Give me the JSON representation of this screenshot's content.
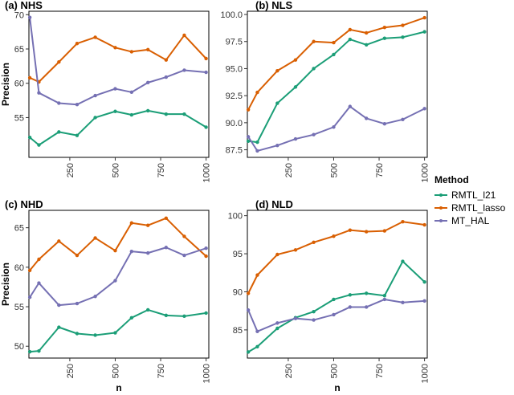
{
  "chart_data": [
    {
      "type": "line",
      "title": "(a) NHS",
      "xlabel": "",
      "ylabel": "Precision",
      "xlim": [
        25,
        1015
      ],
      "ylim": [
        49.2,
        70.5
      ],
      "xticks": [
        250,
        500,
        750,
        1000
      ],
      "yticks": [
        55,
        60,
        65,
        70
      ],
      "x": [
        30,
        80,
        190,
        290,
        390,
        500,
        590,
        680,
        780,
        880,
        1000
      ],
      "series": [
        {
          "name": "RMTL_l21",
          "values": [
            52.1,
            51.0,
            52.9,
            52.4,
            55.0,
            55.9,
            55.4,
            56.0,
            55.5,
            55.5,
            53.6
          ]
        },
        {
          "name": "RMTL_lasso",
          "values": [
            60.8,
            60.2,
            63.1,
            65.8,
            66.7,
            65.2,
            64.6,
            64.9,
            63.4,
            67.0,
            63.6
          ]
        },
        {
          "name": "MT_HAL",
          "values": [
            69.6,
            58.6,
            57.1,
            56.9,
            58.2,
            59.2,
            58.7,
            60.1,
            60.9,
            61.9,
            61.6
          ]
        }
      ]
    },
    {
      "type": "line",
      "title": "(b) NLS",
      "xlabel": "",
      "ylabel": "",
      "xlim": [
        25,
        1015
      ],
      "ylim": [
        86.8,
        100.3
      ],
      "xticks": [
        250,
        500,
        750,
        1000
      ],
      "yticks": [
        "87.5",
        "90.0",
        "92.5",
        "95.0",
        "97.5",
        "100.0"
      ],
      "x": [
        30,
        80,
        190,
        290,
        390,
        500,
        590,
        680,
        780,
        880,
        1000
      ],
      "series": [
        {
          "name": "RMTL_l21",
          "values": [
            88.3,
            88.2,
            91.8,
            93.3,
            95.0,
            96.3,
            97.7,
            97.2,
            97.8,
            97.9,
            98.4
          ]
        },
        {
          "name": "RMTL_lasso",
          "values": [
            91.2,
            92.8,
            94.8,
            95.8,
            97.5,
            97.4,
            98.6,
            98.3,
            98.8,
            99.0,
            99.7
          ]
        },
        {
          "name": "MT_HAL",
          "values": [
            88.7,
            87.4,
            87.9,
            88.5,
            88.9,
            89.6,
            91.5,
            90.4,
            89.9,
            90.3,
            91.3
          ]
        }
      ]
    },
    {
      "type": "line",
      "title": "(c) NHD",
      "xlabel": "n",
      "ylabel": "Precision",
      "xlim": [
        25,
        1015
      ],
      "ylim": [
        48.5,
        67.2
      ],
      "xticks": [
        250,
        500,
        750,
        1000
      ],
      "yticks": [
        50,
        55,
        60,
        65
      ],
      "x": [
        30,
        80,
        190,
        290,
        390,
        500,
        590,
        680,
        780,
        880,
        1000
      ],
      "series": [
        {
          "name": "RMTL_l21",
          "values": [
            49.3,
            49.4,
            52.4,
            51.6,
            51.4,
            51.7,
            53.6,
            54.6,
            53.9,
            53.8,
            54.2
          ]
        },
        {
          "name": "RMTL_lasso",
          "values": [
            59.6,
            61.0,
            63.3,
            61.5,
            63.7,
            62.1,
            65.6,
            65.3,
            66.2,
            63.9,
            61.4
          ]
        },
        {
          "name": "MT_HAL",
          "values": [
            56.2,
            58.0,
            55.2,
            55.4,
            56.3,
            58.3,
            62.0,
            61.8,
            62.5,
            61.5,
            62.4
          ]
        }
      ]
    },
    {
      "type": "line",
      "title": "(d) NLD",
      "xlabel": "n",
      "ylabel": "",
      "xlim": [
        25,
        1015
      ],
      "ylim": [
        81.3,
        100.7
      ],
      "xticks": [
        250,
        500,
        750,
        1000
      ],
      "yticks": [
        85,
        90,
        95,
        100
      ],
      "x": [
        30,
        80,
        190,
        290,
        390,
        500,
        590,
        680,
        780,
        880,
        1000
      ],
      "series": [
        {
          "name": "RMTL_l21",
          "values": [
            82.1,
            82.8,
            85.2,
            86.6,
            87.4,
            89.0,
            89.6,
            89.8,
            89.5,
            94.0,
            91.3
          ]
        },
        {
          "name": "RMTL_lasso",
          "values": [
            89.8,
            92.2,
            94.9,
            95.5,
            96.5,
            97.3,
            98.1,
            97.9,
            98.0,
            99.2,
            98.8
          ]
        },
        {
          "name": "MT_HAL",
          "values": [
            87.6,
            84.8,
            85.9,
            86.5,
            86.3,
            87.0,
            88.0,
            88.0,
            89.0,
            88.6,
            88.8
          ]
        }
      ]
    }
  ],
  "legend": {
    "title": "Method",
    "placement": "right",
    "items": [
      {
        "name": "RMTL_l21",
        "color": "#1b9e77"
      },
      {
        "name": "RMTL_lasso",
        "color": "#d95f02"
      },
      {
        "name": "MT_HAL",
        "color": "#7570b3"
      }
    ]
  },
  "colors": {
    "panel_background": "#ffffff",
    "gridline": "#ffffff",
    "border": "#000000"
  }
}
